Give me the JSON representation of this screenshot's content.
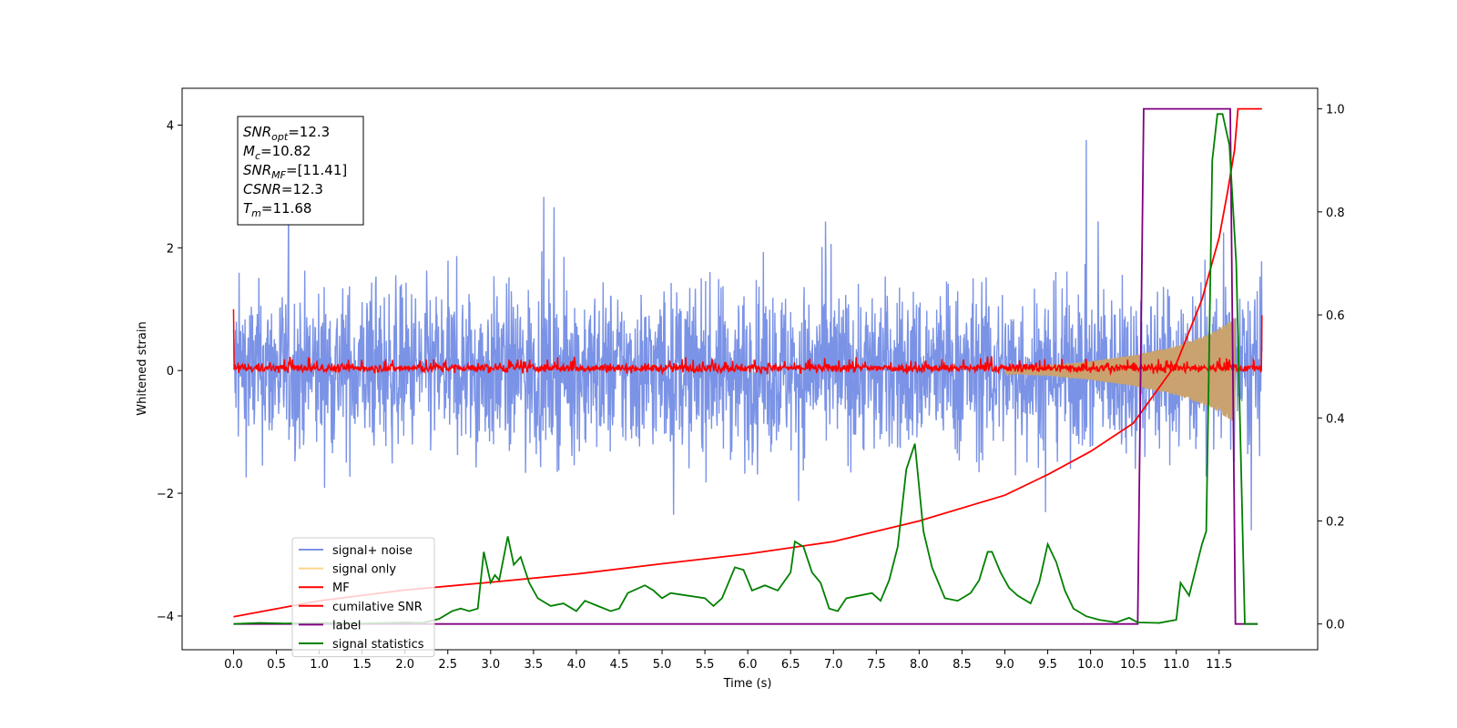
{
  "chart_data": {
    "type": "line",
    "xlabel": "Time (s)",
    "ylabel": "Whitened strain",
    "xlim": [
      -0.6,
      12.65
    ],
    "ylim": [
      -4.55,
      4.6
    ],
    "y2lim": [
      -0.05,
      1.04
    ],
    "x_ticks": [
      0.0,
      0.5,
      1.0,
      1.5,
      2.0,
      2.5,
      3.0,
      3.5,
      4.0,
      4.5,
      5.0,
      5.5,
      6.0,
      6.5,
      7.0,
      7.5,
      8.0,
      8.5,
      9.0,
      9.5,
      10.0,
      10.5,
      11.0,
      11.5
    ],
    "x_tick_labels": [
      "0.0",
      "0.5",
      "1.0",
      "1.5",
      "2.0",
      "2.5",
      "3.0",
      "3.5",
      "4.0",
      "4.5",
      "5.0",
      "5.5",
      "6.0",
      "6.5",
      "7.0",
      "7.5",
      "8.0",
      "8.5",
      "9.0",
      "9.5",
      "10.0",
      "10.5",
      "11.0",
      "11.5"
    ],
    "y_ticks": [
      -4,
      -2,
      0,
      2,
      4
    ],
    "y_tick_labels": [
      "−4",
      "−2",
      "0",
      "2",
      "4"
    ],
    "y2_ticks": [
      0.0,
      0.2,
      0.4,
      0.6,
      0.8,
      1.0
    ],
    "y2_tick_labels": [
      "0.0",
      "0.2",
      "0.4",
      "0.6",
      "0.8",
      "1.0"
    ],
    "info_box": [
      {
        "sym": "SNR",
        "sub": "opt",
        "val": "=12.3"
      },
      {
        "sym": "M",
        "sub": "c",
        "val": "=10.82"
      },
      {
        "sym": "SNR",
        "sub": "MF",
        "val": "=[11.41]"
      },
      {
        "sym": "CSNR",
        "sub": "",
        "val": "=12.3"
      },
      {
        "sym": "T",
        "sub": "m",
        "val": "=11.68"
      }
    ],
    "legend": {
      "placement": "lower-left",
      "entries": [
        {
          "label": "signal+ noise",
          "color": "#7b93e6"
        },
        {
          "label": "signal only",
          "color": "#fdd58a"
        },
        {
          "label": "MF",
          "color": "#ff0000"
        },
        {
          "label": "cumilative SNR",
          "color": "#ff0000"
        },
        {
          "label": "label",
          "color": "#800080"
        },
        {
          "label": "signal statistics",
          "color": "#008000"
        }
      ]
    },
    "series": [
      {
        "name": "signal+ noise",
        "axis": "left",
        "color": "#7b93e6",
        "x_range": [
          0.0,
          12.0
        ],
        "typical_range": [
          -2.0,
          2.0
        ],
        "extreme_range": [
          -4.1,
          4.2
        ]
      },
      {
        "name": "signal only",
        "axis": "left",
        "color": "#fdd58a",
        "x_range": [
          9.0,
          11.68
        ],
        "amplitude_envelope": [
          [
            9.0,
            0.05
          ],
          [
            9.5,
            0.08
          ],
          [
            10.0,
            0.15
          ],
          [
            10.5,
            0.25
          ],
          [
            11.0,
            0.4
          ],
          [
            11.4,
            0.6
          ],
          [
            11.68,
            0.85
          ]
        ]
      },
      {
        "name": "MF",
        "axis": "left",
        "color": "#ff0000",
        "x_range": [
          0.0,
          12.0
        ],
        "typical_range": [
          -0.1,
          0.25
        ],
        "edge_values": [
          1.0,
          0.9
        ]
      },
      {
        "name": "cumilative SNR",
        "axis": "right",
        "color": "#ff0000",
        "points": [
          [
            0.0,
            0.014
          ],
          [
            1.0,
            0.045
          ],
          [
            2.0,
            0.066
          ],
          [
            3.0,
            0.081
          ],
          [
            4.0,
            0.097
          ],
          [
            5.0,
            0.117
          ],
          [
            6.0,
            0.136
          ],
          [
            7.0,
            0.16
          ],
          [
            8.0,
            0.2
          ],
          [
            9.0,
            0.25
          ],
          [
            9.5,
            0.29
          ],
          [
            10.0,
            0.335
          ],
          [
            10.5,
            0.39
          ],
          [
            11.0,
            0.505
          ],
          [
            11.3,
            0.63
          ],
          [
            11.5,
            0.75
          ],
          [
            11.6,
            0.84
          ],
          [
            11.68,
            0.92
          ],
          [
            11.72,
            1.0
          ],
          [
            12.0,
            1.0
          ]
        ]
      },
      {
        "name": "label",
        "axis": "right",
        "color": "#800080",
        "points": [
          [
            0.0,
            0.0
          ],
          [
            10.55,
            0.0
          ],
          [
            10.62,
            1.0
          ],
          [
            11.63,
            1.0
          ],
          [
            11.69,
            0.0
          ],
          [
            11.95,
            0.0
          ]
        ]
      },
      {
        "name": "signal statistics",
        "axis": "right",
        "color": "#008000",
        "points": [
          [
            0.0,
            0.0
          ],
          [
            0.3,
            0.002
          ],
          [
            0.6,
            0.001
          ],
          [
            1.0,
            0.002
          ],
          [
            1.5,
            0.001
          ],
          [
            2.0,
            0.003
          ],
          [
            2.2,
            0.002
          ],
          [
            2.4,
            0.01
          ],
          [
            2.55,
            0.025
          ],
          [
            2.65,
            0.03
          ],
          [
            2.75,
            0.025
          ],
          [
            2.85,
            0.03
          ],
          [
            2.92,
            0.14
          ],
          [
            3.0,
            0.08
          ],
          [
            3.05,
            0.095
          ],
          [
            3.1,
            0.085
          ],
          [
            3.2,
            0.17
          ],
          [
            3.27,
            0.115
          ],
          [
            3.35,
            0.13
          ],
          [
            3.45,
            0.08
          ],
          [
            3.55,
            0.05
          ],
          [
            3.7,
            0.035
          ],
          [
            3.85,
            0.04
          ],
          [
            4.0,
            0.025
          ],
          [
            4.1,
            0.045
          ],
          [
            4.25,
            0.035
          ],
          [
            4.4,
            0.025
          ],
          [
            4.5,
            0.03
          ],
          [
            4.6,
            0.06
          ],
          [
            4.8,
            0.075
          ],
          [
            4.9,
            0.065
          ],
          [
            5.0,
            0.05
          ],
          [
            5.1,
            0.06
          ],
          [
            5.3,
            0.055
          ],
          [
            5.5,
            0.05
          ],
          [
            5.6,
            0.035
          ],
          [
            5.7,
            0.05
          ],
          [
            5.85,
            0.11
          ],
          [
            5.95,
            0.105
          ],
          [
            6.05,
            0.065
          ],
          [
            6.2,
            0.075
          ],
          [
            6.35,
            0.065
          ],
          [
            6.5,
            0.1
          ],
          [
            6.55,
            0.16
          ],
          [
            6.65,
            0.15
          ],
          [
            6.75,
            0.1
          ],
          [
            6.85,
            0.08
          ],
          [
            6.95,
            0.03
          ],
          [
            7.05,
            0.025
          ],
          [
            7.15,
            0.05
          ],
          [
            7.3,
            0.055
          ],
          [
            7.45,
            0.06
          ],
          [
            7.55,
            0.045
          ],
          [
            7.65,
            0.085
          ],
          [
            7.75,
            0.15
          ],
          [
            7.85,
            0.3
          ],
          [
            7.95,
            0.35
          ],
          [
            8.05,
            0.18
          ],
          [
            8.15,
            0.11
          ],
          [
            8.3,
            0.05
          ],
          [
            8.45,
            0.045
          ],
          [
            8.6,
            0.06
          ],
          [
            8.7,
            0.085
          ],
          [
            8.8,
            0.14
          ],
          [
            8.85,
            0.14
          ],
          [
            8.95,
            0.1
          ],
          [
            9.05,
            0.07
          ],
          [
            9.15,
            0.055
          ],
          [
            9.3,
            0.04
          ],
          [
            9.4,
            0.08
          ],
          [
            9.5,
            0.155
          ],
          [
            9.6,
            0.12
          ],
          [
            9.7,
            0.065
          ],
          [
            9.8,
            0.03
          ],
          [
            9.95,
            0.015
          ],
          [
            10.1,
            0.008
          ],
          [
            10.3,
            0.003
          ],
          [
            10.45,
            0.012
          ],
          [
            10.55,
            0.003
          ],
          [
            10.8,
            0.002
          ],
          [
            11.0,
            0.008
          ],
          [
            11.05,
            0.08
          ],
          [
            11.15,
            0.055
          ],
          [
            11.3,
            0.155
          ],
          [
            11.35,
            0.18
          ],
          [
            11.42,
            0.9
          ],
          [
            11.48,
            0.99
          ],
          [
            11.54,
            0.99
          ],
          [
            11.62,
            0.93
          ],
          [
            11.7,
            0.7
          ],
          [
            11.8,
            0.0
          ],
          [
            11.95,
            0.0
          ]
        ]
      }
    ]
  }
}
